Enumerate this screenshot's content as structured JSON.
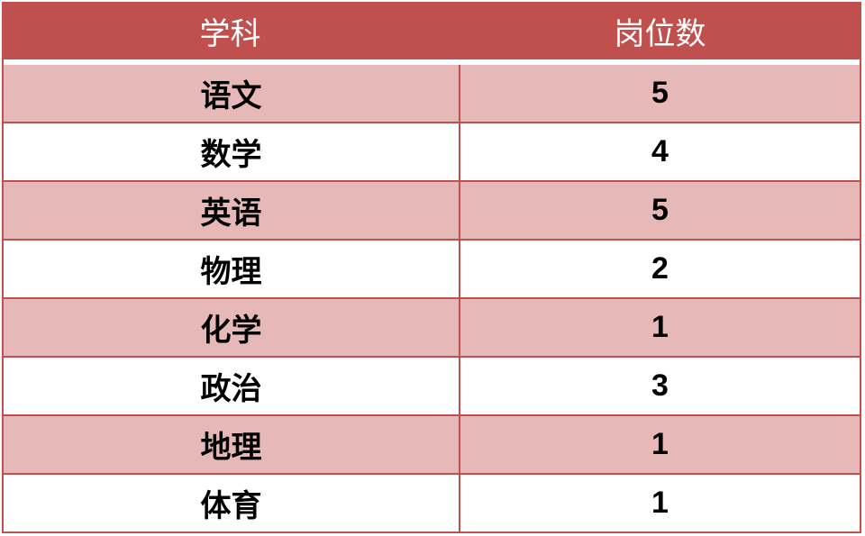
{
  "table": {
    "headers": [
      "学科",
      "岗位数"
    ],
    "rows": [
      [
        "语文",
        "5"
      ],
      [
        "数学",
        "4"
      ],
      [
        "英语",
        "5"
      ],
      [
        "物理",
        "2"
      ],
      [
        "化学",
        "1"
      ],
      [
        "政治",
        "3"
      ],
      [
        "地理",
        "1"
      ],
      [
        "体育",
        "1"
      ]
    ]
  },
  "colors": {
    "header": "#c0504d",
    "band": "#e6b8b7",
    "border": "#c0504d"
  }
}
